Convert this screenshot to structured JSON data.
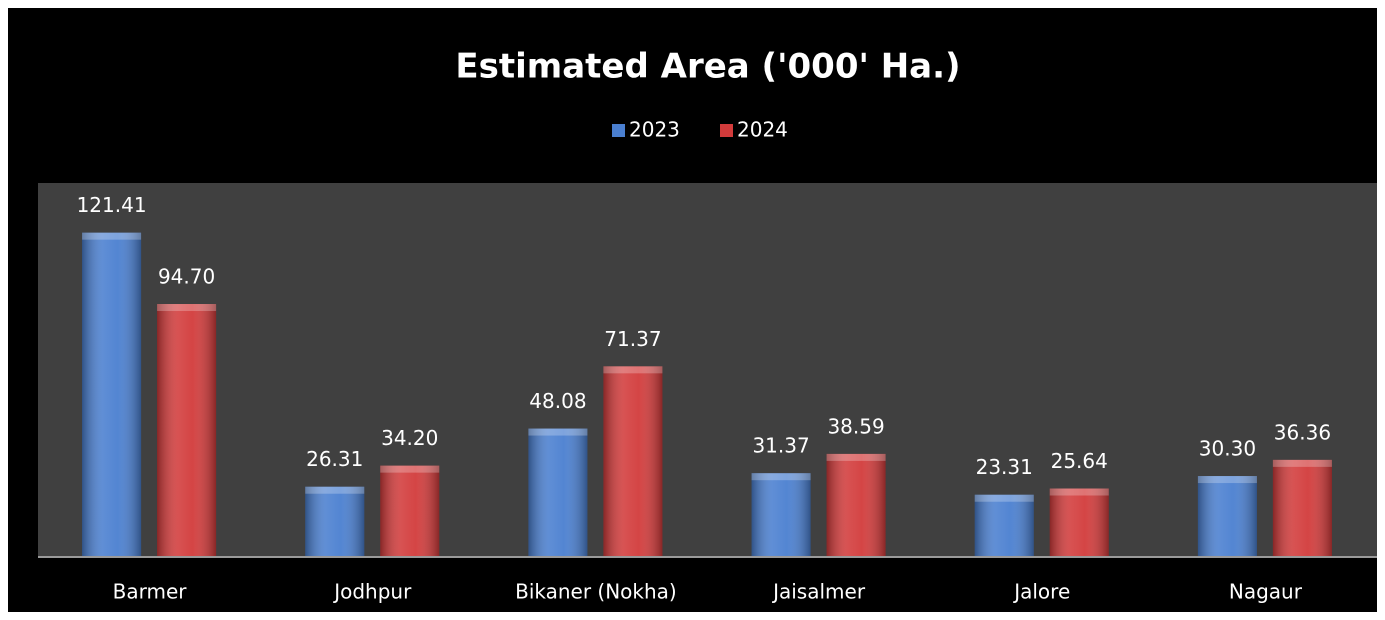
{
  "chart_data": {
    "type": "bar",
    "title": "Estimated Area ('000' Ha.)",
    "categories": [
      "Barmer",
      "Jodhpur",
      "Bikaner (Nokha)",
      "Jaisalmer",
      "Jalore",
      "Nagaur"
    ],
    "series": [
      {
        "name": "2023",
        "color": "#4a7fd0",
        "values": [
          121.41,
          26.31,
          48.08,
          31.37,
          23.31,
          30.3
        ],
        "value_labels": [
          "121.41",
          "26.31",
          "48.08",
          "31.37",
          "23.31",
          "30.30"
        ]
      },
      {
        "name": "2024",
        "color": "#d23b3b",
        "values": [
          94.7,
          34.2,
          71.37,
          38.59,
          25.64,
          36.36
        ],
        "value_labels": [
          "94.70",
          "34.20",
          "71.37",
          "38.59",
          "25.64",
          "36.36"
        ]
      }
    ],
    "ylim": [
      0,
      140
    ],
    "legend": "top"
  }
}
